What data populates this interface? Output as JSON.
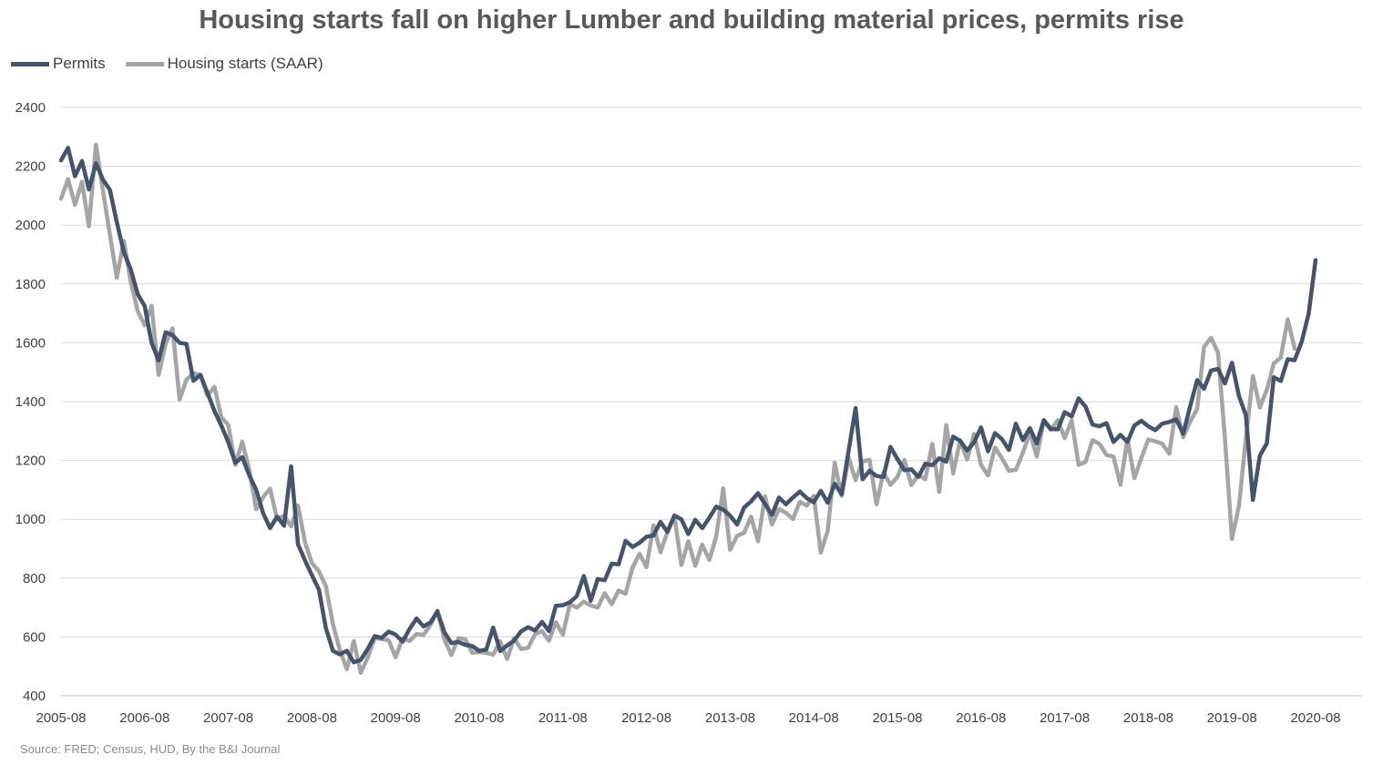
{
  "chart_data": {
    "type": "line",
    "title": "Housing starts fall on higher Lumber and building material prices, permits rise",
    "xlabel": "",
    "ylabel": "",
    "ylim": [
      400,
      2400
    ],
    "yticks": [
      400,
      600,
      800,
      1000,
      1200,
      1400,
      1600,
      1800,
      2000,
      2200,
      2400
    ],
    "xtick_labels": [
      "2005-08",
      "2006-08",
      "2007-08",
      "2008-08",
      "2009-08",
      "2010-08",
      "2011-08",
      "2012-08",
      "2013-08",
      "2014-08",
      "2015-08",
      "2016-08",
      "2017-08",
      "2018-08",
      "2019-08",
      "2020-08"
    ],
    "x_start": "2005-08",
    "grid": "horizontal",
    "legend_position": "top-left",
    "series": [
      {
        "name": "Permits",
        "color": "#44546a",
        "values": [
          2220,
          2263,
          2166,
          2218,
          2121,
          2210,
          2155,
          2120,
          2010,
          1908,
          1850,
          1765,
          1725,
          1600,
          1540,
          1636,
          1626,
          1600,
          1596,
          1471,
          1491,
          1430,
          1369,
          1318,
          1262,
          1192,
          1211,
          1150,
          1100,
          1020,
          970,
          1009,
          978,
          1180,
          915,
          860,
          810,
          760,
          630,
          553,
          541,
          553,
          514,
          522,
          559,
          603,
          597,
          618,
          608,
          584,
          627,
          663,
          636,
          649,
          687,
          616,
          579,
          583,
          573,
          569,
          553,
          557,
          632,
          552,
          571,
          588,
          619,
          633,
          622,
          651,
          620,
          706,
          708,
          718,
          739,
          807,
          723,
          797,
          793,
          849,
          847,
          927,
          906,
          920,
          941,
          945,
          991,
          957,
          1013,
          1000,
          950,
          998,
          970,
          1005,
          1043,
          1033,
          1012,
          982,
          1040,
          1061,
          1089,
          1052,
          1015,
          1074,
          1051,
          1074,
          1094,
          1072,
          1058,
          1097,
          1056,
          1121,
          1085,
          1234,
          1378,
          1136,
          1165,
          1147,
          1144,
          1246,
          1205,
          1167,
          1170,
          1144,
          1189,
          1184,
          1207,
          1196,
          1281,
          1267,
          1234,
          1262,
          1312,
          1231,
          1293,
          1272,
          1236,
          1325,
          1269,
          1310,
          1258,
          1337,
          1307,
          1306,
          1364,
          1350,
          1411,
          1383,
          1322,
          1316,
          1327,
          1263,
          1287,
          1263,
          1319,
          1335,
          1316,
          1303,
          1325,
          1331,
          1340,
          1291,
          1384,
          1473,
          1444,
          1506,
          1511,
          1462,
          1532,
          1419,
          1354,
          1066,
          1216,
          1258,
          1483,
          1470,
          1544,
          1541,
          1603,
          1699,
          1881
        ]
      },
      {
        "name": "Housing starts (SAAR)",
        "color": "#a5a5a5",
        "values": [
          2090,
          2156,
          2069,
          2147,
          1996,
          2273,
          2119,
          1969,
          1821,
          1946,
          1807,
          1707,
          1659,
          1726,
          1491,
          1597,
          1649,
          1407,
          1475,
          1497,
          1490,
          1420,
          1450,
          1346,
          1320,
          1185,
          1264,
          1168,
          1034,
          1076,
          1104,
          1001,
          1012,
          976,
          1046,
          922,
          851,
          823,
          772,
          644,
          556,
          490,
          586,
          478,
          530,
          596,
          593,
          589,
          531,
          595,
          586,
          610,
          607,
          641,
          689,
          591,
          539,
          596,
          592,
          546,
          549,
          546,
          540,
          585,
          525,
          596,
          559,
          563,
          609,
          620,
          587,
          650,
          608,
          711,
          700,
          720,
          707,
          700,
          749,
          711,
          758,
          747,
          836,
          883,
          837,
          979,
          888,
          958,
          1011,
          845,
          925,
          842,
          914,
          862,
          941,
          1105,
          896,
          944,
          954,
          1009,
          925,
          1078,
          982,
          1035,
          1022,
          1001,
          1059,
          1046,
          1080,
          887,
          961,
          1192,
          1080,
          1209,
          1133,
          1197,
          1202,
          1051,
          1160,
          1117,
          1144,
          1202,
          1116,
          1152,
          1136,
          1256,
          1093,
          1320,
          1156,
          1269,
          1203,
          1290,
          1185,
          1149,
          1244,
          1207,
          1165,
          1168,
          1226,
          1295,
          1213,
          1334,
          1304,
          1337,
          1276,
          1336,
          1185,
          1195,
          1269,
          1256,
          1219,
          1213,
          1117,
          1273,
          1140,
          1208,
          1271,
          1265,
          1257,
          1223,
          1381,
          1279,
          1332,
          1375,
          1586,
          1617,
          1567,
          1276,
          933,
          1046,
          1275,
          1487,
          1380,
          1440,
          1530,
          1550,
          1680,
          1580
        ]
      }
    ],
    "source": "Source: FRED; Census, HUD, By the B&I Journal"
  }
}
